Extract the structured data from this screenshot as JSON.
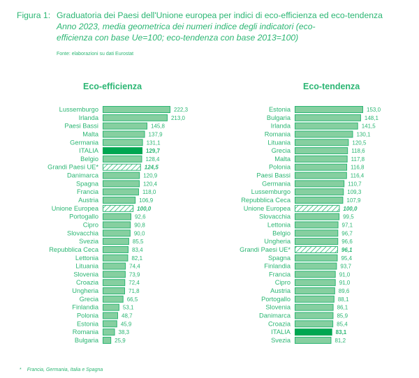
{
  "header": {
    "figure_label": "Figura 1:",
    "title": "Graduatoria dei Paesi dell'Unione europea per indici di eco-efficienza ed eco-tendenza",
    "subtitle": "Anno 2023, media geometrica dei numeri indice degli indicatori (eco-efficienza con base Ue=100; eco-tendenza con base 2013=100)",
    "source": "Fonte: elaborazioni su dati Eurostat"
  },
  "footnote": {
    "marker": "*",
    "text": "Francia, Germania, Italia e Spagna"
  },
  "colors": {
    "text": "#2bb673",
    "bar_fill": "#86cfa0",
    "bar_stroke": "#2bb673",
    "highlight": "#00a651",
    "hatch": "#2bb673"
  },
  "chart_data": [
    {
      "type": "bar",
      "orientation": "horizontal",
      "title": "Eco-efficienza",
      "xlabel": "",
      "ylabel": "",
      "xlim": [
        0,
        222.3
      ],
      "grid": false,
      "categories": [
        "Lussemburgo",
        "Irlanda",
        "Paesi Bassi",
        "Malta",
        "Germania",
        "ITALIA",
        "Belgio",
        "Grandi Paesi UE*",
        "Danimarca",
        "Spagna",
        "Francia",
        "Austria",
        "Unione Europea",
        "Portogallo",
        "Cipro",
        "Slovacchia",
        "Svezia",
        "Repubblica Ceca",
        "Lettonia",
        "Lituania",
        "Slovenia",
        "Croazia",
        "Ungheria",
        "Grecia",
        "Finlandia",
        "Polonia",
        "Estonia",
        "Romania",
        "Bulgaria"
      ],
      "values": [
        222.3,
        213.0,
        145.8,
        137.9,
        131.1,
        129.7,
        128.4,
        124.5,
        120.9,
        120.4,
        118.0,
        106.9,
        100.0,
        92.6,
        90.8,
        90.0,
        85.5,
        83.4,
        82.1,
        74.4,
        73.9,
        72.4,
        71.8,
        66.5,
        53.1,
        48.7,
        45.9,
        38.3,
        25.9
      ],
      "labels": [
        "222,3",
        "213,0",
        "145,8",
        "137,9",
        "131,1",
        "129,7",
        "128,4",
        "124,5",
        "120,9",
        "120,4",
        "118,0",
        "106,9",
        "100,0",
        "92,6",
        "90,8",
        "90,0",
        "85,5",
        "83,4",
        "82,1",
        "74,4",
        "73,9",
        "72,4",
        "71,8",
        "66,5",
        "53,1",
        "48,7",
        "45,9",
        "38,3",
        "25,9"
      ],
      "styles": [
        "normal",
        "normal",
        "normal",
        "normal",
        "normal",
        "highlight",
        "normal",
        "hatched",
        "normal",
        "normal",
        "normal",
        "normal",
        "hatched",
        "normal",
        "normal",
        "normal",
        "normal",
        "normal",
        "normal",
        "normal",
        "normal",
        "normal",
        "normal",
        "normal",
        "normal",
        "normal",
        "normal",
        "normal",
        "normal"
      ]
    },
    {
      "type": "bar",
      "orientation": "horizontal",
      "title": "Eco-tendenza",
      "xlabel": "",
      "ylabel": "",
      "xlim": [
        0,
        153.0
      ],
      "grid": false,
      "categories": [
        "Estonia",
        "Bulgaria",
        "Irlanda",
        "Romania",
        "Lituania",
        "Grecia",
        "Malta",
        "Polonia",
        "Paesi Bassi",
        "Germania",
        "Lussemburgo",
        "Repubblica Ceca",
        "Unione Europea",
        "Slovacchia",
        "Lettonia",
        "Belgio",
        "Ungheria",
        "Grandi Paesi UE*",
        "Spagna",
        "Finlandia",
        "Francia",
        "Cipro",
        "Austria",
        "Portogallo",
        "Slovenia",
        "Danimarca",
        "Croazia",
        "ITALIA",
        "Svezia"
      ],
      "values": [
        153.0,
        148.1,
        141.5,
        130.1,
        120.5,
        118.6,
        117.8,
        116.8,
        116.4,
        110.7,
        109.3,
        107.9,
        100.0,
        99.5,
        97.1,
        96.7,
        96.6,
        96.1,
        95.4,
        93.7,
        91.0,
        91.0,
        89.6,
        88.1,
        86.1,
        85.9,
        85.4,
        83.1,
        81.2
      ],
      "labels": [
        "153,0",
        "148,1",
        "141,5",
        "130,1",
        "120,5",
        "118,6",
        "117,8",
        "116,8",
        "116,4",
        "110,7",
        "109,3",
        "107,9",
        "100,0",
        "99,5",
        "97,1",
        "96,7",
        "96,6",
        "96,1",
        "95,4",
        "93,7",
        "91,0",
        "91,0",
        "89,6",
        "88,1",
        "86,1",
        "85,9",
        "85,4",
        "83,1",
        "81,2"
      ],
      "styles": [
        "normal",
        "normal",
        "normal",
        "normal",
        "normal",
        "normal",
        "normal",
        "normal",
        "normal",
        "normal",
        "normal",
        "normal",
        "hatched",
        "normal",
        "normal",
        "normal",
        "normal",
        "hatched",
        "normal",
        "normal",
        "normal",
        "normal",
        "normal",
        "normal",
        "normal",
        "normal",
        "normal",
        "highlight",
        "normal"
      ]
    }
  ]
}
